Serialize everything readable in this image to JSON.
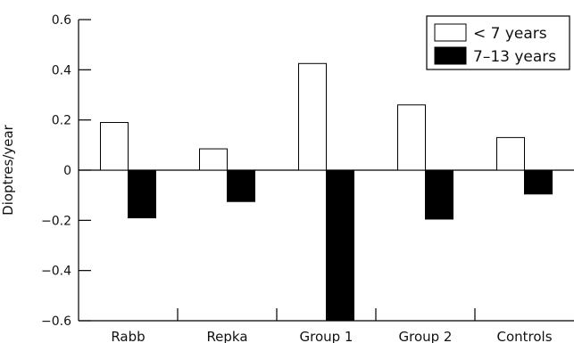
{
  "chart_data": {
    "type": "bar",
    "ylabel": "Dioptres/year",
    "ylim": [
      -0.6,
      0.6
    ],
    "yticks": [
      0.6,
      0.4,
      0.2,
      0,
      -0.2,
      -0.4,
      -0.6
    ],
    "ytick_labels": [
      "0.6",
      "0.4",
      "0.2",
      "0",
      "−0.2",
      "−0.4",
      "−0.6"
    ],
    "categories": [
      "Rabb",
      "Repka",
      "Group 1",
      "Group 2",
      "Controls"
    ],
    "series": [
      {
        "name": "< 7 years",
        "values": [
          0.19,
          0.085,
          0.425,
          0.26,
          0.13
        ],
        "color": "#ffffff"
      },
      {
        "name": "7–13 years",
        "values": [
          -0.19,
          -0.125,
          -0.6,
          -0.195,
          -0.095
        ],
        "color": "#000000"
      }
    ],
    "legend_position": "top-right",
    "grid": false
  }
}
